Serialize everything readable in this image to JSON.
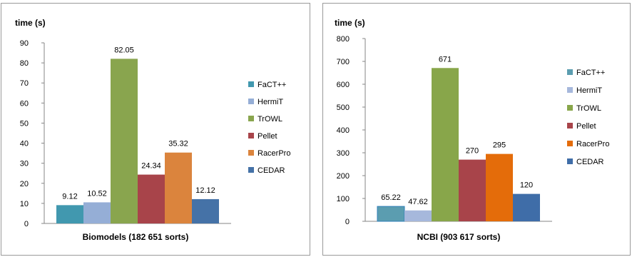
{
  "chart_data": [
    {
      "type": "bar",
      "unit_label": "time (s)",
      "xlabel": "Biomodels  (182 651 sorts)",
      "ylim": [
        0,
        90
      ],
      "yticks": [
        0,
        10,
        20,
        30,
        40,
        50,
        60,
        70,
        80,
        90
      ],
      "legend_position": "right",
      "grid": false,
      "series": [
        {
          "name": "FaCT++",
          "value": 9.12,
          "label": "9.12",
          "color": "#4198AF"
        },
        {
          "name": "HermiT",
          "value": 10.52,
          "label": "10.52",
          "color": "#95AED6"
        },
        {
          "name": "TrOWL",
          "value": 82.05,
          "label": "82.05",
          "color": "#89A54E"
        },
        {
          "name": "Pellet",
          "value": 24.34,
          "label": "24.34",
          "color": "#A8444A"
        },
        {
          "name": "RacerPro",
          "value": 35.32,
          "label": "35.32",
          "color": "#DB843D"
        },
        {
          "name": "CEDAR",
          "value": 12.12,
          "label": "12.12",
          "color": "#4572A7"
        }
      ]
    },
    {
      "type": "bar",
      "unit_label": "time (s)",
      "xlabel": "NCBI (903 617 sorts)",
      "ylim": [
        0,
        800
      ],
      "yticks": [
        0,
        100,
        200,
        300,
        400,
        500,
        600,
        700,
        800
      ],
      "legend_position": "right",
      "grid": false,
      "series": [
        {
          "name": "FaCT++",
          "value": 65.22,
          "label": "65.22",
          "color": "#5B9DB0"
        },
        {
          "name": "HermiT",
          "value": 47.62,
          "label": "47.62",
          "color": "#A6B8DC"
        },
        {
          "name": "TrOWL",
          "value": 671,
          "label": "671",
          "color": "#88A64A"
        },
        {
          "name": "Pellet",
          "value": 270,
          "label": "270",
          "color": "#A8444A"
        },
        {
          "name": "RacerPro",
          "value": 295,
          "label": "295",
          "color": "#E46C0A"
        },
        {
          "name": "CEDAR",
          "value": 120,
          "label": "120",
          "color": "#3F6DA8"
        }
      ]
    }
  ]
}
